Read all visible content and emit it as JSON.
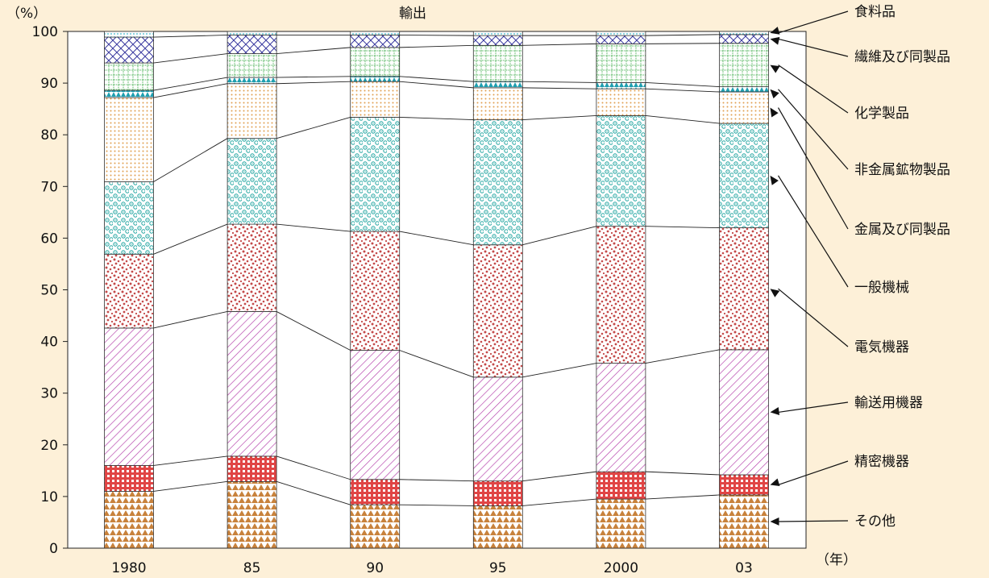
{
  "chart_data": {
    "type": "bar",
    "stacked": true,
    "title": "輸出",
    "ylabel": "（%）",
    "xlabel": "（年）",
    "ylim": [
      0,
      100
    ],
    "yticks": [
      0,
      10,
      20,
      30,
      40,
      50,
      60,
      70,
      80,
      90,
      100
    ],
    "categories": [
      "1980",
      "85",
      "90",
      "95",
      "2000",
      "03"
    ],
    "grid": false,
    "legend_placement": "right",
    "series": [
      {
        "name": "その他",
        "values": [
          11.0,
          12.9,
          8.4,
          8.2,
          9.5,
          10.3
        ],
        "color": "#c8823c",
        "pattern": "triangles"
      },
      {
        "name": "精密機器",
        "values": [
          5.0,
          4.9,
          4.9,
          4.8,
          5.3,
          3.9
        ],
        "color": "#e04545",
        "pattern": "crosshatch"
      },
      {
        "name": "輸送用機器",
        "values": [
          26.6,
          28.0,
          25.0,
          20.1,
          21.0,
          24.2
        ],
        "color": "#b23aa8",
        "pattern": "diagonal"
      },
      {
        "name": "電気機器",
        "values": [
          14.3,
          16.9,
          23.0,
          25.6,
          26.5,
          23.6
        ],
        "color": "#c44a4a",
        "pattern": "speckle"
      },
      {
        "name": "一般機械",
        "values": [
          14.0,
          16.6,
          22.1,
          24.2,
          21.4,
          20.2
        ],
        "color": "#1fa4a0",
        "pattern": "swirl"
      },
      {
        "name": "金属及び同製品",
        "values": [
          16.3,
          10.6,
          6.9,
          6.2,
          5.2,
          6.1
        ],
        "color": "#e0a050",
        "pattern": "dots"
      },
      {
        "name": "非金属鉱物製品",
        "values": [
          1.4,
          1.2,
          1.0,
          1.2,
          1.2,
          1.0
        ],
        "color": "#1f9fb0",
        "pattern": "small-triangles"
      },
      {
        "name": "化学製品",
        "values": [
          5.3,
          4.6,
          5.6,
          7.0,
          7.5,
          8.4
        ],
        "color": "#3aa845",
        "pattern": "grid-dots"
      },
      {
        "name": "繊維及び同製品",
        "values": [
          5.0,
          3.6,
          2.4,
          1.9,
          1.6,
          1.7
        ],
        "color": "#3a3aa0",
        "pattern": "diamond"
      },
      {
        "name": "食料品",
        "values": [
          1.1,
          0.7,
          0.7,
          0.8,
          0.8,
          0.6
        ],
        "color": "#36b6c8",
        "pattern": "light-dots"
      }
    ]
  }
}
